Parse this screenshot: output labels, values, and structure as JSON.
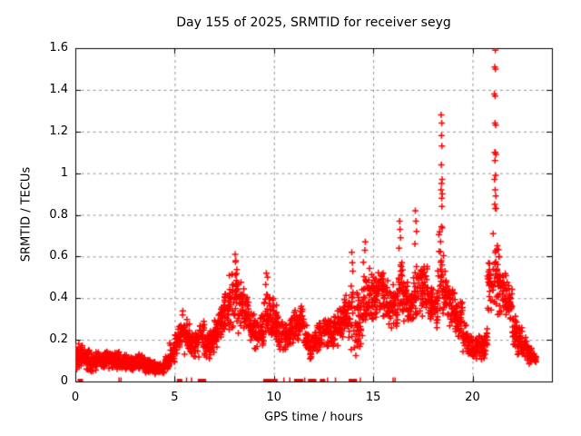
{
  "chart_data": {
    "type": "scatter",
    "title": "Day 155 of 2025, SRMTID for receiver seyg",
    "xlabel": "GPS time / hours",
    "ylabel": "SRMTID / TECUs",
    "xlim": [
      0,
      24
    ],
    "ylim": [
      0,
      1.6
    ],
    "xticks": [
      {
        "value": 0,
        "label": "0"
      },
      {
        "value": 5,
        "label": "5"
      },
      {
        "value": 10,
        "label": "10"
      },
      {
        "value": 15,
        "label": "15"
      },
      {
        "value": 20,
        "label": "20"
      }
    ],
    "yticks": [
      {
        "value": 0,
        "label": "0"
      },
      {
        "value": 0.2,
        "label": "0.2"
      },
      {
        "value": 0.4,
        "label": "0.4"
      },
      {
        "value": 0.6,
        "label": "0.6"
      },
      {
        "value": 0.8,
        "label": "0.8"
      },
      {
        "value": 1,
        "label": "1"
      },
      {
        "value": 1.2,
        "label": "1.2"
      },
      {
        "value": 1.4,
        "label": "1.4"
      },
      {
        "value": 1.6,
        "label": "1.6"
      }
    ],
    "grid": true,
    "legend": "none",
    "colors": {
      "points": "#ff0000",
      "grid": "#909090",
      "axis": "#000000",
      "background": "#ffffff"
    },
    "series": [
      {
        "name": "srmtid-scatter-band",
        "marker": "plus",
        "color": "#ff0000",
        "band_format": [
          "x_start_hours",
          "x_end_hours",
          "y_min_TECUs",
          "y_max_TECUs",
          "n_points"
        ],
        "band": [
          [
            0.0,
            0.25,
            0.04,
            0.19,
            30
          ],
          [
            0.25,
            0.5,
            0.05,
            0.2,
            30
          ],
          [
            0.5,
            0.75,
            0.05,
            0.16,
            30
          ],
          [
            0.75,
            1.0,
            0.04,
            0.14,
            30
          ],
          [
            1.0,
            1.25,
            0.05,
            0.15,
            30
          ],
          [
            1.25,
            1.5,
            0.05,
            0.14,
            30
          ],
          [
            1.5,
            1.75,
            0.06,
            0.16,
            30
          ],
          [
            1.75,
            2.0,
            0.06,
            0.15,
            30
          ],
          [
            2.0,
            2.25,
            0.05,
            0.15,
            30
          ],
          [
            2.25,
            2.5,
            0.05,
            0.14,
            28
          ],
          [
            2.5,
            2.75,
            0.04,
            0.13,
            30
          ],
          [
            2.75,
            3.0,
            0.04,
            0.12,
            30
          ],
          [
            3.0,
            3.25,
            0.05,
            0.14,
            30
          ],
          [
            3.25,
            3.5,
            0.05,
            0.13,
            30
          ],
          [
            3.5,
            3.75,
            0.04,
            0.12,
            30
          ],
          [
            3.75,
            4.0,
            0.04,
            0.11,
            30
          ],
          [
            4.0,
            4.25,
            0.03,
            0.1,
            28
          ],
          [
            4.25,
            4.5,
            0.03,
            0.1,
            26
          ],
          [
            4.5,
            4.75,
            0.05,
            0.14,
            26
          ],
          [
            4.75,
            5.0,
            0.08,
            0.2,
            26
          ],
          [
            5.0,
            5.25,
            0.12,
            0.28,
            24
          ],
          [
            5.25,
            5.5,
            0.16,
            0.35,
            22
          ],
          [
            5.5,
            5.75,
            0.12,
            0.3,
            22
          ],
          [
            5.75,
            6.0,
            0.1,
            0.24,
            22
          ],
          [
            6.0,
            6.25,
            0.11,
            0.25,
            24
          ],
          [
            6.25,
            6.5,
            0.13,
            0.3,
            22
          ],
          [
            6.5,
            6.75,
            0.1,
            0.26,
            24
          ],
          [
            6.75,
            7.0,
            0.12,
            0.28,
            26
          ],
          [
            7.0,
            7.25,
            0.14,
            0.33,
            26
          ],
          [
            7.25,
            7.5,
            0.18,
            0.4,
            26
          ],
          [
            7.5,
            7.75,
            0.22,
            0.47,
            26
          ],
          [
            7.75,
            8.0,
            0.24,
            0.55,
            26
          ],
          [
            8.0,
            8.25,
            0.22,
            0.58,
            26
          ],
          [
            8.25,
            8.5,
            0.22,
            0.5,
            26
          ],
          [
            8.5,
            8.75,
            0.2,
            0.42,
            26
          ],
          [
            8.75,
            9.0,
            0.16,
            0.35,
            26
          ],
          [
            9.0,
            9.25,
            0.14,
            0.32,
            26
          ],
          [
            9.25,
            9.5,
            0.16,
            0.36,
            26
          ],
          [
            9.5,
            9.75,
            0.18,
            0.48,
            24
          ],
          [
            9.75,
            10.0,
            0.18,
            0.46,
            24
          ],
          [
            10.0,
            10.25,
            0.16,
            0.38,
            24
          ],
          [
            10.25,
            10.5,
            0.14,
            0.3,
            24
          ],
          [
            10.5,
            10.75,
            0.14,
            0.3,
            24
          ],
          [
            10.75,
            11.0,
            0.15,
            0.32,
            26
          ],
          [
            11.0,
            11.25,
            0.16,
            0.36,
            24
          ],
          [
            11.25,
            11.5,
            0.18,
            0.4,
            22
          ],
          [
            11.5,
            11.75,
            0.12,
            0.28,
            22
          ],
          [
            11.75,
            12.0,
            0.1,
            0.26,
            22
          ],
          [
            12.0,
            12.25,
            0.12,
            0.28,
            24
          ],
          [
            12.25,
            12.5,
            0.14,
            0.3,
            22
          ],
          [
            12.5,
            12.75,
            0.14,
            0.32,
            24
          ],
          [
            12.75,
            13.0,
            0.15,
            0.33,
            24
          ],
          [
            13.0,
            13.25,
            0.16,
            0.35,
            24
          ],
          [
            13.25,
            13.5,
            0.18,
            0.38,
            26
          ],
          [
            13.5,
            13.75,
            0.2,
            0.42,
            26
          ],
          [
            13.75,
            14.0,
            0.14,
            0.5,
            24
          ],
          [
            14.0,
            14.25,
            0.1,
            0.44,
            24
          ],
          [
            14.25,
            14.5,
            0.14,
            0.48,
            24
          ],
          [
            14.5,
            14.75,
            0.22,
            0.58,
            26
          ],
          [
            14.75,
            15.0,
            0.28,
            0.55,
            26
          ],
          [
            15.0,
            15.25,
            0.28,
            0.52,
            26
          ],
          [
            15.25,
            15.5,
            0.3,
            0.55,
            26
          ],
          [
            15.5,
            15.75,
            0.28,
            0.5,
            26
          ],
          [
            15.75,
            16.0,
            0.24,
            0.46,
            26
          ],
          [
            16.0,
            16.25,
            0.24,
            0.48,
            26
          ],
          [
            16.25,
            16.5,
            0.28,
            0.6,
            26
          ],
          [
            16.5,
            16.75,
            0.28,
            0.52,
            26
          ],
          [
            16.75,
            17.0,
            0.25,
            0.46,
            26
          ],
          [
            17.0,
            17.25,
            0.28,
            0.6,
            26
          ],
          [
            17.25,
            17.5,
            0.3,
            0.58,
            26
          ],
          [
            17.5,
            17.75,
            0.32,
            0.6,
            26
          ],
          [
            17.75,
            18.0,
            0.28,
            0.52,
            26
          ],
          [
            18.0,
            18.25,
            0.25,
            0.48,
            26
          ],
          [
            18.25,
            18.5,
            0.3,
            0.8,
            26
          ],
          [
            18.5,
            18.75,
            0.28,
            0.62,
            26
          ],
          [
            18.75,
            19.0,
            0.24,
            0.5,
            26
          ],
          [
            19.0,
            19.25,
            0.22,
            0.45,
            26
          ],
          [
            19.25,
            19.5,
            0.18,
            0.4,
            26
          ],
          [
            19.5,
            19.75,
            0.14,
            0.3,
            26
          ],
          [
            19.75,
            20.0,
            0.1,
            0.26,
            26
          ],
          [
            20.0,
            20.25,
            0.08,
            0.24,
            26
          ],
          [
            20.25,
            20.5,
            0.08,
            0.22,
            26
          ],
          [
            20.5,
            20.75,
            0.1,
            0.26,
            26
          ],
          [
            20.75,
            21.0,
            0.25,
            0.7,
            26
          ],
          [
            21.0,
            21.25,
            0.3,
            0.8,
            26
          ],
          [
            21.25,
            21.5,
            0.3,
            0.65,
            26
          ],
          [
            21.5,
            21.75,
            0.3,
            0.56,
            26
          ],
          [
            21.75,
            22.0,
            0.28,
            0.5,
            26
          ],
          [
            22.0,
            22.25,
            0.14,
            0.34,
            26
          ],
          [
            22.25,
            22.5,
            0.12,
            0.28,
            26
          ],
          [
            22.5,
            22.75,
            0.1,
            0.22,
            26
          ],
          [
            22.75,
            23.0,
            0.08,
            0.18,
            26
          ],
          [
            23.0,
            23.2,
            0.08,
            0.15,
            18
          ]
        ]
      },
      {
        "name": "srmtid-spike-points",
        "marker": "plus",
        "color": "#ff0000",
        "points": [
          [
            8.05,
            0.61
          ],
          [
            8.08,
            0.58
          ],
          [
            9.62,
            0.52
          ],
          [
            9.68,
            0.5
          ],
          [
            13.92,
            0.62
          ],
          [
            13.95,
            0.57
          ],
          [
            13.97,
            0.53
          ],
          [
            14.6,
            0.67
          ],
          [
            14.58,
            0.63
          ],
          [
            16.33,
            0.77
          ],
          [
            16.35,
            0.73
          ],
          [
            16.38,
            0.69
          ],
          [
            16.3,
            0.64
          ],
          [
            17.12,
            0.82
          ],
          [
            17.15,
            0.77
          ],
          [
            17.18,
            0.72
          ],
          [
            17.1,
            0.66
          ],
          [
            18.42,
            1.28
          ],
          [
            18.45,
            1.24
          ],
          [
            18.44,
            1.18
          ],
          [
            18.46,
            1.13
          ],
          [
            18.43,
            1.04
          ],
          [
            18.47,
            0.97
          ],
          [
            18.44,
            0.95
          ],
          [
            18.42,
            0.92
          ],
          [
            18.48,
            0.9
          ],
          [
            18.45,
            0.88
          ],
          [
            18.46,
            0.84
          ],
          [
            21.15,
            1.59
          ],
          [
            21.12,
            1.51
          ],
          [
            21.16,
            1.5
          ],
          [
            21.1,
            1.38
          ],
          [
            21.14,
            1.37
          ],
          [
            21.13,
            1.24
          ],
          [
            21.17,
            1.23
          ],
          [
            21.12,
            1.1
          ],
          [
            21.15,
            1.1
          ],
          [
            21.18,
            1.09
          ],
          [
            21.13,
            1.06
          ],
          [
            21.16,
            0.99
          ],
          [
            21.11,
            0.97
          ],
          [
            21.14,
            0.92
          ],
          [
            21.17,
            0.89
          ],
          [
            21.12,
            0.85
          ],
          [
            21.15,
            0.83
          ],
          [
            21.19,
            0.83
          ]
        ]
      },
      {
        "name": "baseline-flag-squares",
        "marker": "filled-square",
        "color": "#ff0000",
        "y": 0,
        "x": [
          0.25,
          5.25,
          6.3,
          6.45,
          9.6,
          9.8,
          10.05,
          11.15,
          11.35,
          11.85,
          12.0,
          12.45,
          13.9,
          14.05
        ]
      },
      {
        "name": "baseline-flag-ticks",
        "marker": "vertical-tick",
        "color": "#ff0000",
        "y": 0,
        "x": [
          2.2,
          2.3,
          5.6,
          5.85,
          10.5,
          10.8,
          11.55,
          12.7,
          13.1,
          14.35,
          16.0,
          16.1
        ]
      }
    ]
  }
}
